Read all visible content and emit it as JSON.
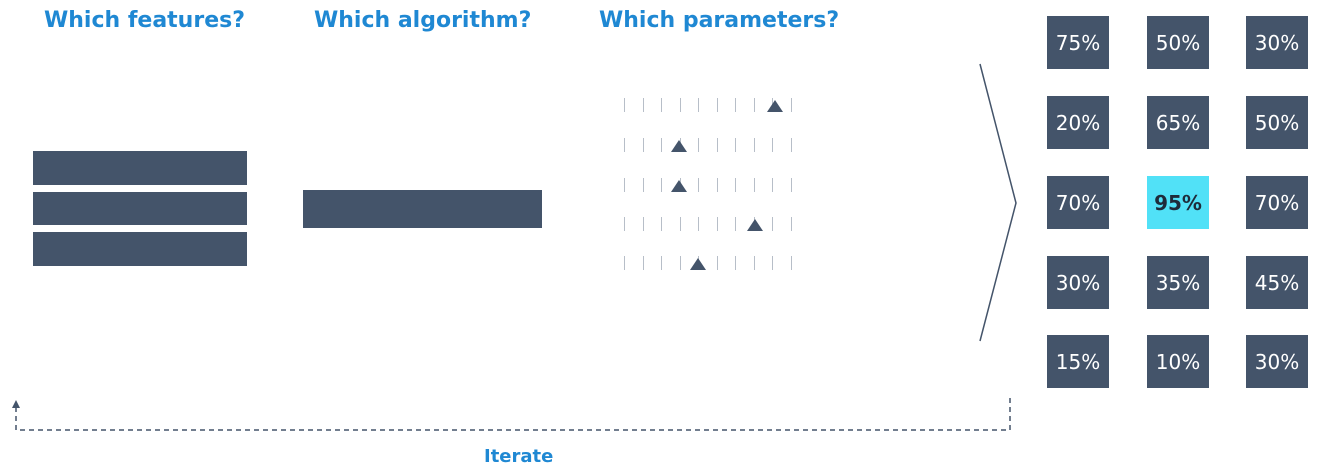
{
  "headings": {
    "features": "Which features?",
    "algorithm": "Which algorithm?",
    "parameters": "Which parameters?"
  },
  "sliders": [
    {
      "position": 0.9
    },
    {
      "position": 0.33
    },
    {
      "position": 0.33
    },
    {
      "position": 0.78
    },
    {
      "position": 0.44
    }
  ],
  "grid": {
    "rows": [
      [
        "75%",
        "50%",
        "30%"
      ],
      [
        "20%",
        "65%",
        "50%"
      ],
      [
        "70%",
        "95%",
        "70%"
      ],
      [
        "30%",
        "35%",
        "45%"
      ],
      [
        "15%",
        "10%",
        "30%"
      ]
    ],
    "highlight": "95%"
  },
  "iterate_label": "Iterate",
  "colors": {
    "heading": "#1f88d3",
    "block": "#44546a",
    "highlight": "#51e1f7"
  }
}
